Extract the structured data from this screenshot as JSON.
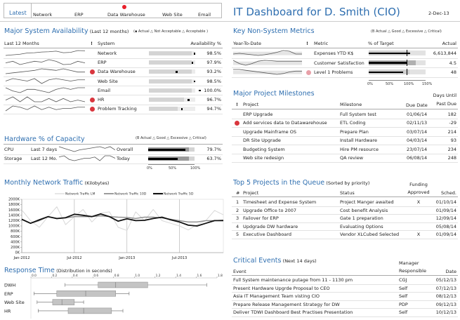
{
  "latest": {
    "label": "Latest",
    "items": [
      {
        "name": "Network",
        "alert": false
      },
      {
        "name": "ERP",
        "alert": false
      },
      {
        "name": "Data Warehouse",
        "alert": true
      },
      {
        "name": "Web Site",
        "alert": false
      },
      {
        "name": "Email",
        "alert": false
      }
    ]
  },
  "header": {
    "title": "IT Dashboard for  D. Smith (CIO)",
    "date": "2-Dec-13"
  },
  "availability": {
    "title": "Major System Availability",
    "subtitle": "(Last 12 months)",
    "legend": "(▪  Actual △  Not Acceptable △  Acceptable )",
    "col_trend": "Last 12 Months",
    "col_alert": "!",
    "col_system": "System",
    "col_value": "Availability %",
    "rows": [
      {
        "system": "Network",
        "alert": false,
        "value": "98.5%",
        "actual": 98.5,
        "acceptable": 0.93,
        "trend": [
          3,
          3.5,
          4,
          5,
          5.2,
          5.8,
          6,
          6.5,
          5.2,
          5.5,
          7,
          6.8
        ]
      },
      {
        "system": "ERP",
        "alert": false,
        "value": "97.9%",
        "actual": 97.9,
        "acceptable": 0.93,
        "trend": [
          4,
          5,
          3,
          4,
          5,
          4.5,
          6,
          5,
          3,
          3.2,
          5,
          4
        ]
      },
      {
        "system": "Data Warehouse",
        "alert": true,
        "value": "93.2%",
        "actual": 93.2,
        "acceptable": 0.93,
        "trend": [
          3,
          3.5,
          4,
          4.5,
          5,
          6,
          5.5,
          5,
          6,
          5,
          4,
          4
        ]
      },
      {
        "system": "Web Site",
        "alert": false,
        "value": "98.5%",
        "actual": 98.5,
        "acceptable": 0.93,
        "trend": [
          4,
          6,
          5,
          4,
          6,
          2,
          5,
          6,
          5,
          4,
          5,
          5
        ]
      },
      {
        "system": "Email",
        "alert": false,
        "value": "100.0%",
        "actual": 100.0,
        "acceptable": 0.93,
        "trend": [
          6,
          4,
          3,
          5,
          5,
          4,
          3,
          5,
          6,
          5,
          6,
          6
        ]
      },
      {
        "system": "HR",
        "alert": true,
        "value": "96.7%",
        "actual": 96.7,
        "acceptable": 0.75,
        "trend": [
          4,
          6,
          3,
          6,
          3,
          3,
          5,
          3,
          5,
          3,
          4,
          3
        ]
      },
      {
        "system": "Problem Tracking",
        "alert": true,
        "value": "94.7%",
        "actual": 94.7,
        "acceptable": 0.62,
        "trend": [
          2,
          6,
          5,
          3,
          6,
          3,
          5,
          3,
          4,
          4,
          5,
          5
        ]
      }
    ]
  },
  "hardware": {
    "title": "Hardware % of Capacity",
    "legend": "(B   Actual △  Good △  Excessive △  Critical)",
    "axis": [
      "0%",
      "50%",
      "100%"
    ],
    "rows": [
      {
        "resource": "CPU",
        "period": "Last 7 days",
        "scope": "Overall",
        "value": "79.7%",
        "actual": 79.7,
        "trend": [
          5,
          4,
          3,
          2,
          3,
          3.5,
          4,
          4.5,
          5,
          4,
          5,
          3
        ]
      },
      {
        "resource": "Storage",
        "period": "Last 12 Mo.",
        "scope": "Today",
        "value": "63.7%",
        "actual": 63.7,
        "trend": [
          5,
          6,
          3,
          2,
          3,
          4,
          4,
          5,
          2,
          6,
          6,
          4
        ]
      }
    ]
  },
  "metrics": {
    "title": "Key Non-System Metrics",
    "legend": "(B   Actual △  Good △  Excessive △  Critical)",
    "col_trend": "Year-To-Date",
    "col_alert": "!",
    "col_metric": "Metric",
    "col_target": "% of Target",
    "col_actual": "Actual",
    "axis": [
      "0%",
      "50%",
      "100%",
      "150%"
    ],
    "rows": [
      {
        "metric": "Expenses YTD K$",
        "alert": false,
        "value": "6,613,844",
        "pct_of_target": 110,
        "trend": [
          4,
          4.2,
          4,
          3.8,
          3.6,
          3.8,
          4.1,
          4.5,
          5,
          4.8,
          4,
          4
        ]
      },
      {
        "metric": "Customer Satisfaction",
        "alert": false,
        "value": "4.5",
        "pct_of_target": 100,
        "trend": [
          5,
          3,
          2,
          3,
          4.5,
          5,
          4.8,
          4.5,
          4.5,
          4.5,
          4.5,
          4.5
        ]
      },
      {
        "metric": "Level 1 Problems",
        "alert": "pink",
        "value": "48",
        "pct_of_target": 90,
        "trend": [
          5,
          5,
          4.5,
          4,
          3.5,
          3,
          2.5,
          2,
          2.5,
          3.5,
          4,
          4
        ]
      }
    ]
  },
  "milestones": {
    "title": "Major Project Milestones",
    "col_alert": "!",
    "col_project": "Project",
    "col_milestone": "Milestone",
    "col_due": "Due Date",
    "col_days_1": "Days Until",
    "col_days_2": "Past Due",
    "rows": [
      {
        "project": "ERP Upgrade",
        "alert": false,
        "milestone": "Full System test",
        "due": "01/06/14",
        "days": "182"
      },
      {
        "project": "Add services data to Datawarehouse",
        "alert": true,
        "milestone": "ETL Coding",
        "due": "02/11/13",
        "days": "-29"
      },
      {
        "project": "Upgrade Mainframe OS",
        "alert": false,
        "milestone": "Prepare Plan",
        "due": "03/07/14",
        "days": "214"
      },
      {
        "project": "DR Site Upgrade",
        "alert": false,
        "milestone": "Install Hardware",
        "due": "04/03/14",
        "days": "93"
      },
      {
        "project": "Budgeting System",
        "alert": false,
        "milestone": "Hire PM resource",
        "due": "23/07/14",
        "days": "234"
      },
      {
        "project": "Web site redesign",
        "alert": false,
        "milestone": "QA review",
        "due": "06/08/14",
        "days": "248"
      }
    ]
  },
  "traffic": {
    "title": "Monthly Network Traffic",
    "subtitle": "(Kilobytes)"
  },
  "chart_data": [
    {
      "type": "line",
      "title": "Monthly Network Traffic (Kilobytes)",
      "xlabel": "",
      "ylabel": "",
      "x_tick_labels": [
        "Jan-2012",
        "Jul-2012",
        "Jan-2013",
        "Jul-2013"
      ],
      "y_tick_labels": [
        "0K",
        "200K",
        "400K",
        "600K",
        "800K",
        "1000K",
        "1200K",
        "1400K",
        "1600K",
        "1800K",
        "2000K"
      ],
      "ylim": [
        0,
        2000
      ],
      "grid": "vertical",
      "legend": "top",
      "x": [
        "Jan-2012",
        "Feb-2012",
        "Mar-2012",
        "Apr-2012",
        "May-2012",
        "Jun-2012",
        "Jul-2012",
        "Aug-2012",
        "Sep-2012",
        "Oct-2012",
        "Nov-2012",
        "Dec-2012",
        "Jan-2013",
        "Feb-2013",
        "Mar-2013",
        "Apr-2013",
        "May-2013",
        "Jun-2013",
        "Jul-2013",
        "Aug-2013",
        "Sep-2013",
        "Oct-2013",
        "Nov-2013",
        "Dec-2013"
      ],
      "series": [
        {
          "name": "Network Traffic LM",
          "values": [
            1600,
            1200,
            950,
            1350,
            1720,
            1050,
            1350,
            1620,
            1150,
            1480,
            1530,
            950,
            830,
            1530,
            1200,
            1620,
            1200,
            1100,
            1000,
            850,
            1050,
            1200,
            1580,
            1420
          ]
        },
        {
          "name": "Network Traffic 10D",
          "values": [
            1250,
            1100,
            1200,
            1350,
            1270,
            1300,
            1350,
            1350,
            1350,
            1380,
            1350,
            1330,
            1320,
            1280,
            1330,
            1330,
            1300,
            1250,
            1200,
            1150,
            1150,
            1200,
            1200,
            1220
          ]
        },
        {
          "name": "Network Traffic 5D",
          "values": [
            1250,
            1100,
            1230,
            1350,
            1280,
            1310,
            1440,
            1400,
            1350,
            1450,
            1350,
            1180,
            1270,
            1200,
            1210,
            1280,
            1330,
            1230,
            1150,
            1030,
            1000,
            1100,
            1200,
            1200
          ]
        }
      ]
    },
    {
      "type": "boxplot",
      "title": "Response Time (Distribution in seconds)",
      "x_tick_labels": [
        "0.0",
        "0.2",
        "0.4",
        "0.6",
        "0.8",
        "1.0",
        "1.2",
        "1.4",
        "1.6",
        "1.8"
      ],
      "xlim": [
        0,
        1.8
      ],
      "categories": [
        "DWH",
        "ERP",
        "Web Site",
        "HR"
      ],
      "series": [
        {
          "name": "DWH",
          "min": 0.33,
          "q1": 0.65,
          "median": 0.82,
          "q3": 1.13,
          "max": 1.7
        },
        {
          "name": "ERP",
          "min": 0.03,
          "q1": 0.25,
          "median": 0.53,
          "q3": 0.82,
          "max": 0.95
        },
        {
          "name": "Web Site",
          "min": 0.06,
          "q1": 0.21,
          "median": 0.3,
          "q3": 0.42,
          "max": 0.51
        },
        {
          "name": "HR",
          "min": 0.07,
          "q1": 0.36,
          "median": 0.51,
          "q3": 0.78,
          "max": 0.89
        }
      ]
    }
  ],
  "response": {
    "title": "Response Time",
    "subtitle": "(Distribution in seconds)"
  },
  "queue": {
    "title": "Top 5 Projects in the Queue",
    "subtitle": "(Sorted by priority)",
    "col_num": "#",
    "col_project": "Project",
    "col_status": "Status",
    "col_funding_1": "Funding",
    "col_funding_2": "Approved",
    "col_sched": "Sched.",
    "rows": [
      {
        "num": "1",
        "project": "Timesheet and Expense System",
        "status": "Project Manger awaited",
        "funded": "X",
        "sched": "01/10/14"
      },
      {
        "num": "2",
        "project": "Upgrade Office to 2007",
        "status": "Cost benefit Analysis",
        "funded": "",
        "sched": "01/09/14"
      },
      {
        "num": "3",
        "project": "Failover for ERP",
        "status": "Gate 1 preparation",
        "funded": "",
        "sched": "12/09/14"
      },
      {
        "num": "4",
        "project": "Updgrade DW hardware",
        "status": "Evaluating Options",
        "funded": "",
        "sched": "05/08/14"
      },
      {
        "num": "5",
        "project": "Executive Dashboard",
        "status": "Vendor XLCubed Selected",
        "funded": "X",
        "sched": "01/09/14"
      }
    ]
  },
  "events": {
    "title": "Critical Events",
    "subtitle": "(Next 14 days)",
    "col_event": "Event",
    "col_manager_1": "Manager",
    "col_manager_2": "Responsible",
    "col_date": "Date",
    "rows": [
      {
        "event": "Full System maintenance putage from 11 - 1130 pm",
        "manager": "CGJ",
        "date": "05/12/13"
      },
      {
        "event": "Present Hardware Upgrde Proposal to CEO",
        "manager": "Self",
        "date": "07/12/13"
      },
      {
        "event": "Asia IT Management Team visting CIO",
        "manager": "Self",
        "date": "08/12/13"
      },
      {
        "event": "Prepare Release Management Strategy for DW",
        "manager": "PDP",
        "date": "09/12/13"
      },
      {
        "event": "Deliver  TDWI Dashboard Best Practises Presentation",
        "manager": "Self",
        "date": "10/12/13"
      }
    ]
  },
  "colors": {
    "title_blue": "#2f6fb0",
    "alert_red": "#d9363e",
    "alert_pink": "#e8a0a8",
    "bar_grey": "#d4d4d4",
    "bar_light": "#ececec"
  }
}
